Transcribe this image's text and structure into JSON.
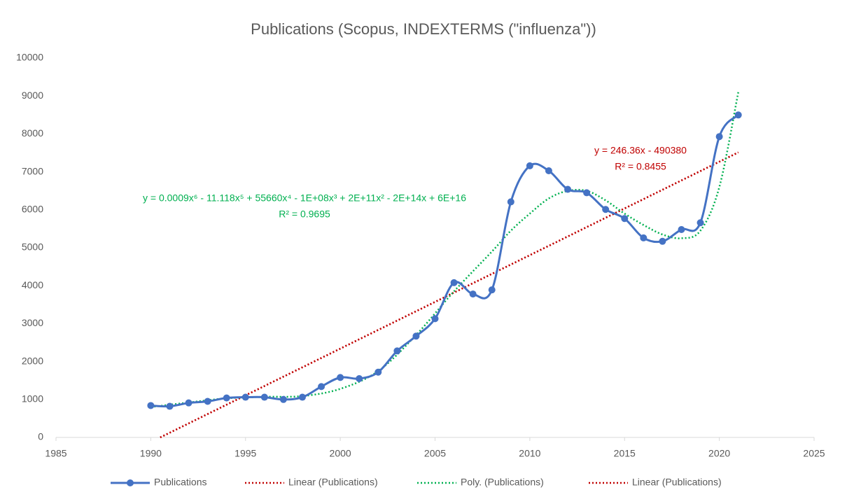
{
  "chart_data": {
    "type": "line",
    "title": "Publications (Scopus, INDEXTERMS (\"influenza\"))",
    "xlim": [
      1985,
      2025
    ],
    "xticks": [
      1985,
      1990,
      1995,
      2000,
      2005,
      2010,
      2015,
      2020,
      2025
    ],
    "ylim": [
      0,
      10000
    ],
    "yticks": [
      0,
      1000,
      2000,
      3000,
      4000,
      5000,
      6000,
      7000,
      8000,
      9000,
      10000
    ],
    "grid": false,
    "legend": "bottom",
    "series": [
      {
        "name": "Publications",
        "color": "#4472c4",
        "style": "solid",
        "marker": true,
        "x": [
          1990,
          1991,
          1992,
          1993,
          1994,
          1995,
          1996,
          1997,
          1998,
          1999,
          2000,
          2001,
          2002,
          2003,
          2004,
          2005,
          2006,
          2007,
          2008,
          2009,
          2010,
          2011,
          2012,
          2013,
          2014,
          2015,
          2016,
          2017,
          2018,
          2019,
          2020,
          2021
        ],
        "values": [
          840,
          820,
          910,
          950,
          1040,
          1060,
          1060,
          1000,
          1060,
          1340,
          1580,
          1550,
          1720,
          2280,
          2670,
          3130,
          4080,
          3780,
          3890,
          6210,
          7160,
          7030,
          6540,
          6450,
          6010,
          5770,
          5260,
          5170,
          5480,
          5660,
          7930,
          8500
        ]
      },
      {
        "name": "Linear (Publications)",
        "color": "#c00000",
        "style": "dotted",
        "marker": false,
        "x": [
          1990.5,
          2021
        ],
        "values": [
          0,
          7514
        ]
      },
      {
        "name": "Poly. (Publications)",
        "color": "#00b050",
        "style": "dotted",
        "marker": false,
        "x": [
          1990,
          1992,
          1994,
          1996,
          1998,
          2000,
          2002,
          2004,
          2006,
          2008,
          2009,
          2010,
          2011,
          2012,
          2013,
          2014,
          2015,
          2016,
          2017,
          2018,
          2019,
          2020,
          2021
        ],
        "values": [
          800,
          920,
          1030,
          1070,
          1090,
          1280,
          1750,
          2700,
          3850,
          4900,
          5450,
          5900,
          6300,
          6500,
          6500,
          6250,
          5900,
          5600,
          5350,
          5250,
          5450,
          6600,
          9100
        ]
      },
      {
        "name": "Linear (Publications)",
        "color": "#c00000",
        "style": "dotted",
        "marker": false,
        "x": [
          1990.5,
          2021
        ],
        "values": [
          0,
          7514
        ]
      }
    ],
    "annotations": [
      {
        "text": "y = 0.0009x⁶ - 11.118x⁵ + 55660x⁴ - 1E+08x³ + 2E+11x² - 2E+14x + 6E+16",
        "color": "#00b050"
      },
      {
        "text": "R² = 0.9695",
        "color": "#00b050"
      },
      {
        "text": "y = 246.36x - 490380",
        "color": "#c00000"
      },
      {
        "text": "R² = 0.8455",
        "color": "#c00000"
      }
    ]
  }
}
